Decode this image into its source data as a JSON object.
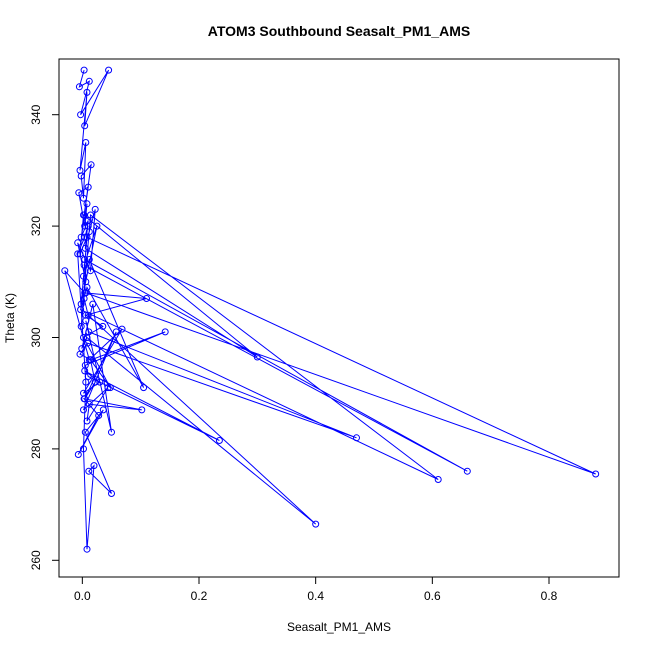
{
  "chart_data": {
    "type": "line",
    "title": "ATOM3 Southbound Seasalt_PM1_AMS",
    "xlabel": "Seasalt_PM1_AMS",
    "ylabel": "Theta (K)",
    "xlim": [
      -0.04,
      0.92
    ],
    "ylim": [
      257,
      350
    ],
    "xticks": [
      0.0,
      0.2,
      0.4,
      0.6,
      0.8
    ],
    "xtick_labels": [
      "0.0",
      "0.2",
      "0.4",
      "0.6",
      "0.8"
    ],
    "yticks": [
      260,
      280,
      300,
      320,
      340
    ],
    "ytick_labels": [
      "260",
      "280",
      "300",
      "320",
      "340"
    ],
    "grid": false,
    "legend": "none",
    "line_color": "#0000ff",
    "marker": "open-circle",
    "series": [
      {
        "x": [
          0.003,
          -0.005,
          0.012,
          -0.003,
          0.045,
          0.004,
          0.008,
          -0.004,
          0.006,
          0.002,
          -0.002,
          0.015,
          0.003,
          0.01,
          -0.006,
          0.004,
          0.008,
          -0.002,
          0.01,
          0.005,
          0.3,
          0.002,
          -0.004,
          0.012,
          0.022,
          0.014,
          -0.008,
          0.006,
          0.004,
          0.66,
          0.003,
          0.025,
          -0.002,
          0.008,
          0.88,
          0.006,
          0.002,
          0.012,
          0.105,
          0.008,
          -0.003,
          0.61,
          0.014,
          -0.002,
          0.003,
          0.01,
          0.4,
          0.008,
          -0.001,
          0.018,
          0.05,
          0.006,
          0.011,
          0.47,
          0.009,
          -0.004,
          0.015,
          0.142,
          0.005,
          0.01,
          0.235,
          0.004,
          0.03,
          0.002,
          0.068,
          0.012,
          -0.03,
          0.004,
          0.11,
          0.006,
          0.035,
          0.002,
          0.048,
          0.014,
          0.022,
          0.004,
          0.058,
          0.002,
          0.044,
          0.008,
          0.012,
          0.102,
          0.003,
          0.028,
          -0.007,
          0.036,
          0.005,
          0.05,
          0.011,
          0.02,
          0.008,
          0.002,
          0.006,
          -0.008,
          0.004,
          0.01
        ],
        "y": [
          348,
          345,
          346,
          340,
          348,
          338,
          344,
          330,
          335,
          325,
          329,
          331,
          322,
          327,
          326,
          320,
          324,
          318,
          321,
          316,
          296.5,
          322,
          315,
          319,
          323,
          312,
          317,
          310,
          314,
          276,
          313,
          320,
          306,
          318,
          275.5,
          308,
          311,
          314,
          291,
          309,
          305,
          274.5,
          322,
          302,
          307,
          304,
          266.5,
          300,
          298,
          306,
          283,
          303,
          301,
          282,
          299,
          297,
          296,
          301,
          295,
          293,
          281.5,
          294,
          292,
          290,
          301.5,
          296,
          312,
          308,
          307,
          304,
          302,
          300,
          291,
          296,
          292,
          289,
          301,
          287,
          291,
          285,
          288,
          287,
          289,
          286,
          279,
          287,
          283,
          272,
          276,
          277,
          262,
          280,
          292,
          315,
          318,
          320
        ]
      }
    ]
  }
}
